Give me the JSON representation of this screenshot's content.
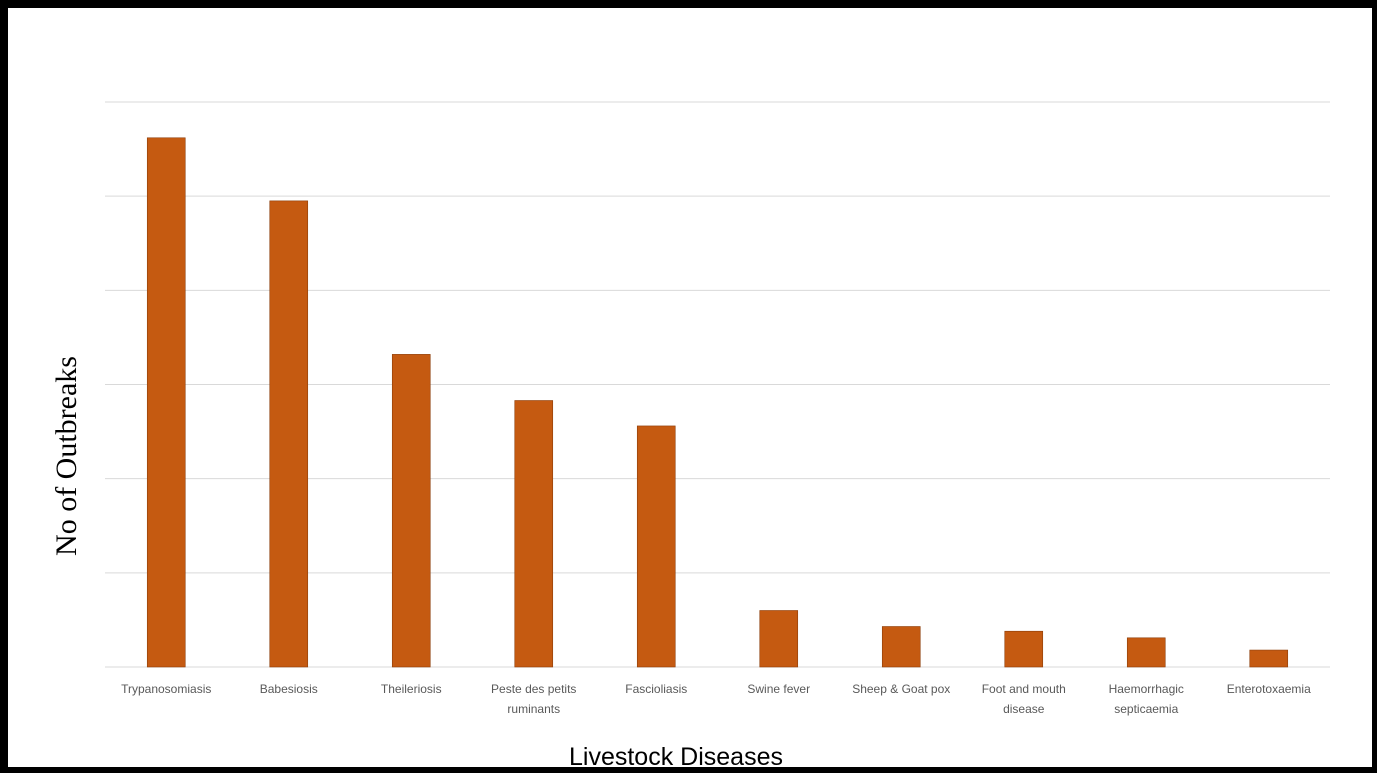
{
  "chart_data": {
    "type": "bar",
    "title": "",
    "xlabel": "Livestock Diseases",
    "ylabel": "No of Outbreaks",
    "categories": [
      "Trypanosomiasis",
      "Babesiosis",
      "Theileriosis",
      "Peste des petits ruminants",
      "Fascioliasis",
      "Swine fever",
      "Sheep & Goat pox",
      "Foot and mouth disease",
      "Haemorrhagic septicaemia",
      "Enterotoxaemia"
    ],
    "category_lines": [
      [
        "Trypanosomiasis"
      ],
      [
        "Babesiosis"
      ],
      [
        "Theileriosis"
      ],
      [
        "Peste des petits",
        "ruminants"
      ],
      [
        "Fascioliasis"
      ],
      [
        "Swine fever"
      ],
      [
        "Sheep & Goat pox"
      ],
      [
        "Foot and mouth",
        "disease"
      ],
      [
        "Haemorrhagic",
        "septicaemia"
      ],
      [
        "Enterotoxaemia"
      ]
    ],
    "values": [
      5.62,
      4.95,
      3.32,
      2.83,
      2.56,
      0.6,
      0.43,
      0.38,
      0.31,
      0.18
    ],
    "ylim": [
      0,
      6
    ],
    "gridlines": [
      0,
      1,
      2,
      3,
      4,
      5,
      6
    ],
    "grid": true,
    "legend": "none",
    "bar_color": "#c55a11"
  }
}
